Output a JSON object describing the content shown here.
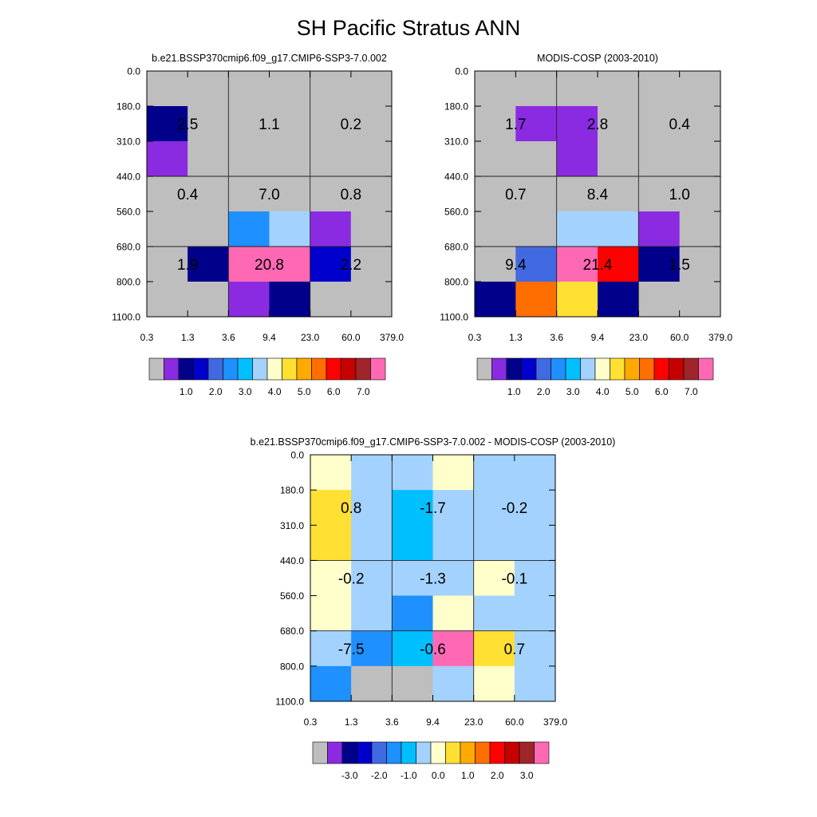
{
  "title": "SH Pacific Stratus ANN",
  "colors": [
    "#bebebe",
    "#8a2be2",
    "#00008b",
    "#0000cd",
    "#4169e1",
    "#1e90ff",
    "#00bfff",
    "#a4d2ff",
    "#ffffcc",
    "#ffe033",
    "#ffaa00",
    "#ff6e00",
    "#ff0000",
    "#c60000",
    "#a0252a",
    "#ff69b4"
  ],
  "y_ticks": [
    "0.0",
    "180.0",
    "310.0",
    "440.0",
    "560.0",
    "680.0",
    "800.0",
    "1100.0"
  ],
  "x_ticks": [
    "0.3",
    "1.3",
    "3.6",
    "9.4",
    "23.0",
    "60.0",
    "379.0"
  ],
  "chart_data": [
    {
      "type": "heatmap",
      "title": "b.e21.BSSP370cmip6.f09_g17.CMIP6-SSP3-7.0.002",
      "grid": [
        [
          0,
          0,
          0,
          0,
          0,
          0
        ],
        [
          2,
          0,
          0,
          0,
          0,
          0
        ],
        [
          1,
          0,
          0,
          0,
          0,
          0
        ],
        [
          0,
          0,
          0,
          0,
          0,
          0
        ],
        [
          0,
          0,
          5,
          7,
          1,
          0
        ],
        [
          0,
          2,
          15,
          15,
          3,
          0
        ],
        [
          0,
          0,
          1,
          2,
          0,
          0
        ]
      ],
      "box_labels": [
        "2.5",
        "1.1",
        "0.2",
        "0.4",
        "7.0",
        "0.8",
        "1.9",
        "20.8",
        "2.2"
      ],
      "colorbar_labels": [
        "1.0",
        "2.0",
        "3.0",
        "4.0",
        "5.0",
        "6.0",
        "7.0"
      ]
    },
    {
      "type": "heatmap",
      "title": "MODIS-COSP (2003-2010)",
      "grid": [
        [
          0,
          0,
          0,
          0,
          0,
          0
        ],
        [
          0,
          1,
          1,
          0,
          0,
          0
        ],
        [
          0,
          0,
          1,
          0,
          0,
          0
        ],
        [
          0,
          0,
          0,
          0,
          0,
          0
        ],
        [
          0,
          0,
          7,
          7,
          1,
          0
        ],
        [
          0,
          4,
          15,
          12,
          2,
          0
        ],
        [
          2,
          11,
          9,
          2,
          0,
          0
        ]
      ],
      "box_labels": [
        "1.7",
        "2.8",
        "0.4",
        "0.7",
        "8.4",
        "1.0",
        "9.4",
        "21.4",
        "1.5"
      ],
      "colorbar_labels": [
        "1.0",
        "2.0",
        "3.0",
        "4.0",
        "5.0",
        "6.0",
        "7.0"
      ]
    },
    {
      "type": "heatmap",
      "title": "b.e21.BSSP370cmip6.f09_g17.CMIP6-SSP3-7.0.002 - MODIS-COSP (2003-2010)",
      "grid": [
        [
          8,
          7,
          7,
          8,
          7,
          7
        ],
        [
          9,
          7,
          6,
          7,
          7,
          7
        ],
        [
          9,
          7,
          6,
          7,
          7,
          7
        ],
        [
          8,
          7,
          7,
          7,
          8,
          7
        ],
        [
          8,
          7,
          5,
          8,
          7,
          7
        ],
        [
          7,
          5,
          6,
          15,
          9,
          7
        ],
        [
          5,
          0,
          0,
          7,
          8,
          7
        ]
      ],
      "box_labels": [
        "0.8",
        "-1.7",
        "-0.2",
        "-0.2",
        "-1.3",
        "-0.1",
        "-7.5",
        "-0.6",
        "0.7"
      ],
      "colorbar_labels": [
        "-3.0",
        "-2.0",
        "-1.0",
        "0.0",
        "1.0",
        "2.0",
        "3.0"
      ]
    }
  ]
}
